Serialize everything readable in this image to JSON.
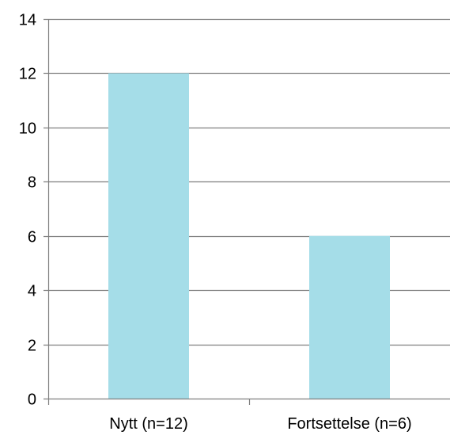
{
  "chart_data": {
    "type": "bar",
    "categories": [
      "Nytt (n=12)",
      "Fortsettelse (n=6)"
    ],
    "values": [
      12,
      6
    ],
    "title": "",
    "xlabel": "",
    "ylabel": "",
    "ylim": [
      0,
      14
    ],
    "yticks": [
      0,
      2,
      4,
      6,
      8,
      10,
      12,
      14
    ],
    "grid": true,
    "bar_color": "#a5dde8",
    "grid_color": "#7f7f7f",
    "axis_color": "#7f7f7f"
  }
}
